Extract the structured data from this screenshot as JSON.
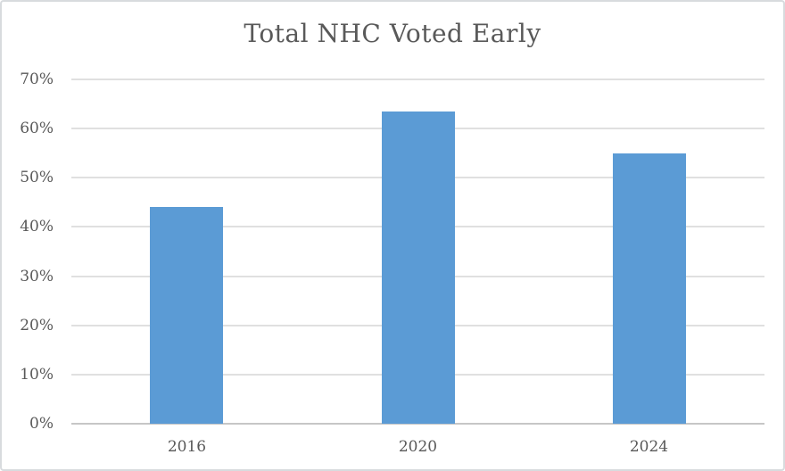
{
  "chart_data": {
    "type": "bar",
    "title": "Total NHC Voted Early",
    "categories": [
      "2016",
      "2020",
      "2024"
    ],
    "values": [
      44,
      63.5,
      55
    ],
    "xlabel": "",
    "ylabel": "",
    "ylim": [
      0,
      70
    ],
    "ytick_step": 10,
    "ytick_labels": [
      "0%",
      "10%",
      "20%",
      "30%",
      "40%",
      "50%",
      "60%",
      "70%"
    ],
    "grid": true,
    "legend": false,
    "bar_color": "#5B9BD5",
    "gridline_color": "#E0E0E0",
    "axis_line_color": "#C6C6C6",
    "text_color": "#595959",
    "title_color": "#595959",
    "background_color": "#FFFFFF",
    "border_color": "#D8DBDE"
  }
}
